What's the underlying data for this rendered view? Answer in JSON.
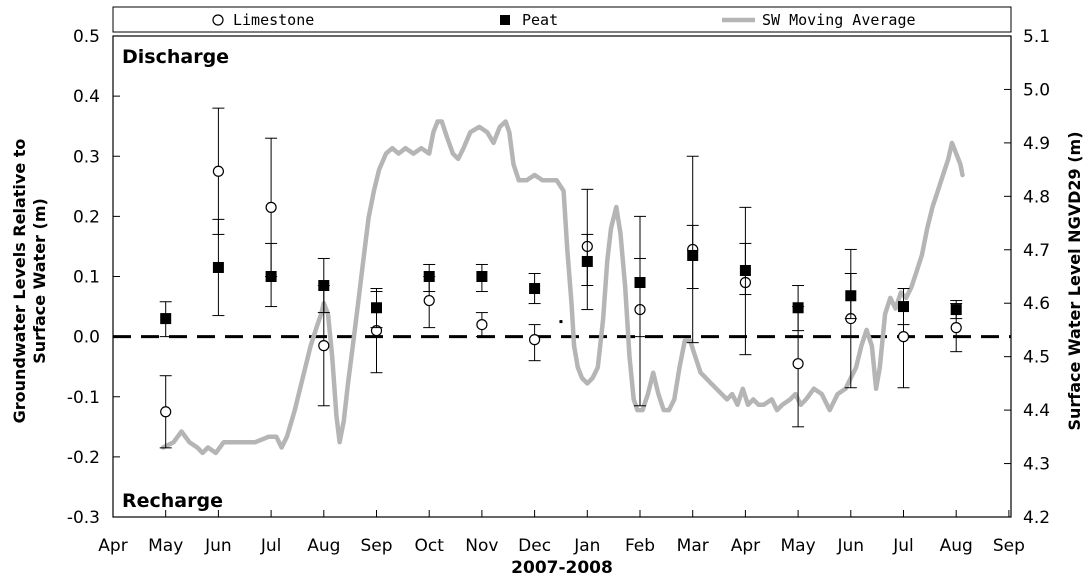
{
  "chart_data": {
    "type": "scatter",
    "xlabel": "2007-2008",
    "ylabel": "Groundwater Levels Relative to Surface Water (m)",
    "ylabel_lines": [
      "Groundwater Levels Relative to",
      "Surface Water (m)"
    ],
    "y2label": "Surface Water Level NGVD29 (m)",
    "ylim": [
      -0.3,
      0.5
    ],
    "y2lim": [
      4.2,
      5.1
    ],
    "yticks": [
      "0.5",
      "0.4",
      "0.3",
      "0.2",
      "0.1",
      "0.0",
      "-0.1",
      "-0.2",
      "-0.3"
    ],
    "y2ticks": [
      "5.1",
      "5.0",
      "4.9",
      "4.8",
      "4.7",
      "4.6",
      "4.5",
      "4.4",
      "4.3",
      "4.2"
    ],
    "categories": [
      "Apr",
      "May",
      "Jun",
      "Jul",
      "Aug",
      "Sep",
      "Oct",
      "Nov",
      "Dec",
      "Jan",
      "Feb",
      "Mar",
      "Apr",
      "May",
      "Jun",
      "Jul",
      "Aug",
      "Sep"
    ],
    "legend": {
      "position": "top",
      "items": [
        "Limestone",
        "Peat",
        "SW Moving Average"
      ]
    },
    "annotations": [
      "Discharge",
      "Recharge"
    ],
    "reference_line": {
      "y": 0.0,
      "style": "dashed"
    },
    "series": [
      {
        "name": "Limestone",
        "marker": "open-circle",
        "points": [
          {
            "x": 1,
            "y": -0.125,
            "lo": -0.185,
            "hi": -0.065
          },
          {
            "x": 2,
            "y": 0.275,
            "lo": 0.17,
            "hi": 0.38
          },
          {
            "x": 3,
            "y": 0.215,
            "lo": 0.1,
            "hi": 0.33
          },
          {
            "x": 4,
            "y": -0.015,
            "lo": -0.115,
            "hi": 0.085
          },
          {
            "x": 5,
            "y": 0.01,
            "lo": -0.06,
            "hi": 0.075
          },
          {
            "x": 6,
            "y": 0.06,
            "lo": 0.015,
            "hi": 0.1
          },
          {
            "x": 7,
            "y": 0.02,
            "lo": 0.0,
            "hi": 0.04
          },
          {
            "x": 8,
            "y": -0.005,
            "lo": -0.04,
            "hi": 0.02
          },
          {
            "x": 9,
            "y": 0.15,
            "lo": 0.045,
            "hi": 0.245
          },
          {
            "x": 10,
            "y": 0.045,
            "lo": -0.115,
            "hi": 0.2
          },
          {
            "x": 11,
            "y": 0.145,
            "lo": -0.01,
            "hi": 0.3
          },
          {
            "x": 12,
            "y": 0.09,
            "lo": -0.03,
            "hi": 0.215
          },
          {
            "x": 13,
            "y": -0.045,
            "lo": -0.15,
            "hi": 0.05
          },
          {
            "x": 14,
            "y": 0.03,
            "lo": -0.085,
            "hi": 0.145
          },
          {
            "x": 15,
            "y": 0.0,
            "lo": -0.085,
            "hi": 0.08
          },
          {
            "x": 16,
            "y": 0.015,
            "lo": -0.025,
            "hi": 0.055
          }
        ]
      },
      {
        "name": "Peat",
        "marker": "filled-square",
        "points": [
          {
            "x": 1,
            "y": 0.03,
            "lo": 0.0,
            "hi": 0.058
          },
          {
            "x": 2,
            "y": 0.115,
            "lo": 0.035,
            "hi": 0.195
          },
          {
            "x": 3,
            "y": 0.1,
            "lo": 0.05,
            "hi": 0.155
          },
          {
            "x": 4,
            "y": 0.085,
            "lo": 0.04,
            "hi": 0.13
          },
          {
            "x": 5,
            "y": 0.048,
            "lo": 0.015,
            "hi": 0.08
          },
          {
            "x": 6,
            "y": 0.1,
            "lo": 0.075,
            "hi": 0.12
          },
          {
            "x": 7,
            "y": 0.1,
            "lo": 0.075,
            "hi": 0.12
          },
          {
            "x": 8,
            "y": 0.08,
            "lo": 0.055,
            "hi": 0.105
          },
          {
            "x": 9,
            "y": 0.125,
            "lo": 0.085,
            "hi": 0.17
          },
          {
            "x": 10,
            "y": 0.09,
            "lo": 0.0,
            "hi": 0.13
          },
          {
            "x": 11,
            "y": 0.135,
            "lo": 0.08,
            "hi": 0.185
          },
          {
            "x": 12,
            "y": 0.11,
            "lo": 0.07,
            "hi": 0.155
          },
          {
            "x": 13,
            "y": 0.048,
            "lo": 0.01,
            "hi": 0.085
          },
          {
            "x": 14,
            "y": 0.068,
            "lo": 0.03,
            "hi": 0.105
          },
          {
            "x": 15,
            "y": 0.05,
            "lo": 0.02,
            "hi": 0.08
          },
          {
            "x": 16,
            "y": 0.045,
            "lo": 0.03,
            "hi": 0.06
          }
        ]
      },
      {
        "name": "SW Moving Average",
        "axis": "right",
        "color": "#b5b5b5",
        "points": [
          [
            0.95,
            4.33
          ],
          [
            1.15,
            4.34
          ],
          [
            1.3,
            4.36
          ],
          [
            1.45,
            4.34
          ],
          [
            1.6,
            4.33
          ],
          [
            1.7,
            4.32
          ],
          [
            1.8,
            4.33
          ],
          [
            1.95,
            4.32
          ],
          [
            2.1,
            4.34
          ],
          [
            2.4,
            4.34
          ],
          [
            2.7,
            4.34
          ],
          [
            2.95,
            4.35
          ],
          [
            3.1,
            4.35
          ],
          [
            3.2,
            4.33
          ],
          [
            3.3,
            4.35
          ],
          [
            3.45,
            4.4
          ],
          [
            3.6,
            4.46
          ],
          [
            3.75,
            4.52
          ],
          [
            3.88,
            4.56
          ],
          [
            3.95,
            4.58
          ],
          [
            4.0,
            4.6
          ],
          [
            4.08,
            4.58
          ],
          [
            4.16,
            4.5
          ],
          [
            4.24,
            4.39
          ],
          [
            4.3,
            4.34
          ],
          [
            4.38,
            4.38
          ],
          [
            4.46,
            4.45
          ],
          [
            4.55,
            4.52
          ],
          [
            4.65,
            4.6
          ],
          [
            4.75,
            4.68
          ],
          [
            4.85,
            4.76
          ],
          [
            4.95,
            4.81
          ],
          [
            5.05,
            4.85
          ],
          [
            5.18,
            4.88
          ],
          [
            5.3,
            4.89
          ],
          [
            5.42,
            4.88
          ],
          [
            5.55,
            4.89
          ],
          [
            5.7,
            4.88
          ],
          [
            5.85,
            4.89
          ],
          [
            6.0,
            4.88
          ],
          [
            6.08,
            4.92
          ],
          [
            6.16,
            4.94
          ],
          [
            6.24,
            4.94
          ],
          [
            6.34,
            4.91
          ],
          [
            6.45,
            4.88
          ],
          [
            6.55,
            4.87
          ],
          [
            6.65,
            4.89
          ],
          [
            6.78,
            4.92
          ],
          [
            6.95,
            4.93
          ],
          [
            7.1,
            4.92
          ],
          [
            7.22,
            4.9
          ],
          [
            7.34,
            4.93
          ],
          [
            7.45,
            4.94
          ],
          [
            7.52,
            4.92
          ],
          [
            7.6,
            4.86
          ],
          [
            7.7,
            4.83
          ],
          [
            7.85,
            4.83
          ],
          [
            8.0,
            4.84
          ],
          [
            8.15,
            4.83
          ],
          [
            8.3,
            4.83
          ],
          [
            8.42,
            4.83
          ],
          [
            8.55,
            4.81
          ],
          [
            8.62,
            4.7
          ],
          [
            8.7,
            4.6
          ],
          [
            8.75,
            4.52
          ],
          [
            8.82,
            4.48
          ],
          [
            8.9,
            4.46
          ],
          [
            9.0,
            4.45
          ],
          [
            9.1,
            4.46
          ],
          [
            9.2,
            4.48
          ],
          [
            9.3,
            4.57
          ],
          [
            9.38,
            4.68
          ],
          [
            9.45,
            4.74
          ],
          [
            9.55,
            4.78
          ],
          [
            9.63,
            4.73
          ],
          [
            9.72,
            4.63
          ],
          [
            9.8,
            4.5
          ],
          [
            9.88,
            4.42
          ],
          [
            9.95,
            4.4
          ],
          [
            10.05,
            4.4
          ],
          [
            10.15,
            4.43
          ],
          [
            10.25,
            4.47
          ],
          [
            10.35,
            4.43
          ],
          [
            10.45,
            4.4
          ],
          [
            10.55,
            4.4
          ],
          [
            10.65,
            4.42
          ],
          [
            10.75,
            4.48
          ],
          [
            10.85,
            4.53
          ],
          [
            10.95,
            4.53
          ],
          [
            11.05,
            4.5
          ],
          [
            11.15,
            4.47
          ],
          [
            11.25,
            4.46
          ],
          [
            11.35,
            4.45
          ],
          [
            11.45,
            4.44
          ],
          [
            11.55,
            4.43
          ],
          [
            11.65,
            4.42
          ],
          [
            11.75,
            4.43
          ],
          [
            11.85,
            4.41
          ],
          [
            11.95,
            4.44
          ],
          [
            12.05,
            4.41
          ],
          [
            12.15,
            4.42
          ],
          [
            12.25,
            4.41
          ],
          [
            12.35,
            4.41
          ],
          [
            12.5,
            4.42
          ],
          [
            12.6,
            4.4
          ],
          [
            12.7,
            4.41
          ],
          [
            12.85,
            4.42
          ],
          [
            12.95,
            4.43
          ],
          [
            13.05,
            4.41
          ],
          [
            13.15,
            4.42
          ],
          [
            13.3,
            4.44
          ],
          [
            13.45,
            4.43
          ],
          [
            13.6,
            4.4
          ],
          [
            13.75,
            4.43
          ],
          [
            13.9,
            4.44
          ],
          [
            14.0,
            4.46
          ],
          [
            14.1,
            4.48
          ],
          [
            14.2,
            4.52
          ],
          [
            14.3,
            4.55
          ],
          [
            14.4,
            4.52
          ],
          [
            14.48,
            4.44
          ],
          [
            14.55,
            4.48
          ],
          [
            14.65,
            4.58
          ],
          [
            14.75,
            4.61
          ],
          [
            14.85,
            4.59
          ],
          [
            14.95,
            4.62
          ],
          [
            15.05,
            4.61
          ],
          [
            15.15,
            4.63
          ],
          [
            15.25,
            4.66
          ],
          [
            15.35,
            4.69
          ],
          [
            15.45,
            4.74
          ],
          [
            15.55,
            4.78
          ],
          [
            15.65,
            4.81
          ],
          [
            15.75,
            4.84
          ],
          [
            15.85,
            4.87
          ],
          [
            15.92,
            4.9
          ],
          [
            16.0,
            4.88
          ],
          [
            16.08,
            4.86
          ],
          [
            16.12,
            4.84
          ]
        ]
      }
    ]
  }
}
